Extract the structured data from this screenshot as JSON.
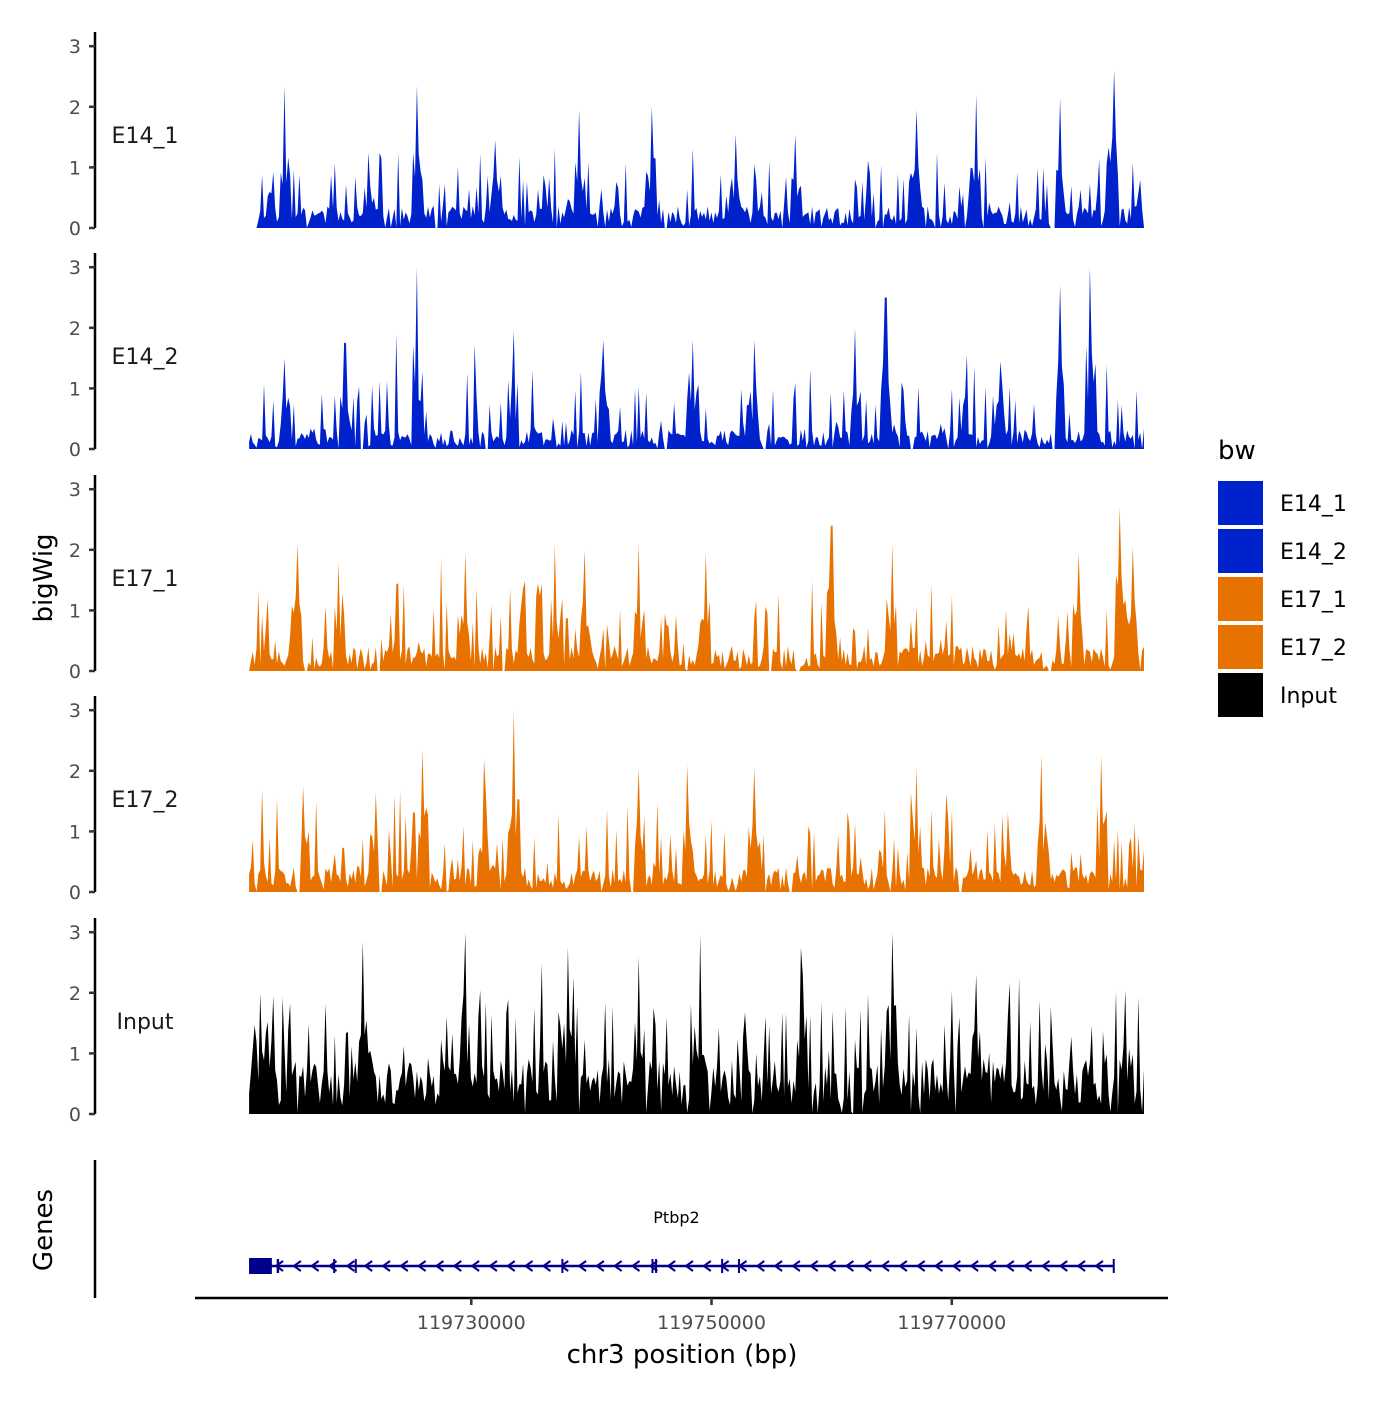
{
  "chart_data": {
    "type": "area",
    "title": "",
    "ylabel": "bigWig",
    "xlabel": "chr3 position (bp)",
    "gene_panel_label": "Genes",
    "x_range_bp": [
      119711500,
      119786000
    ],
    "xlim_bp": [
      119707000,
      119788000
    ],
    "x_ticks": [
      119730000,
      119750000,
      119770000
    ],
    "x_tick_labels": [
      "119730000",
      "119750000",
      "119770000"
    ],
    "ylim": [
      0,
      3.1
    ],
    "y_ticks": [
      0,
      1,
      2,
      3
    ],
    "y_tick_labels": [
      "0",
      "1",
      "2",
      "3"
    ],
    "legend": {
      "title": "bw",
      "position": "right",
      "entries": [
        {
          "name": "E14_1",
          "color": "#0022CC"
        },
        {
          "name": "E14_2",
          "color": "#0022CC"
        },
        {
          "name": "E17_1",
          "color": "#E87200"
        },
        {
          "name": "E17_2",
          "color": "#E87200"
        },
        {
          "name": "Input",
          "color": "#000000"
        }
      ]
    },
    "series": [
      {
        "name": "E14_1",
        "color": "#0022CC",
        "seed": 11,
        "base": 0.28,
        "spike_max": 1.0,
        "peaks": [
          {
            "bp": 119714500,
            "value": 2.35
          },
          {
            "bp": 119721500,
            "value": 1.25
          },
          {
            "bp": 119725500,
            "value": 2.35
          },
          {
            "bp": 119732000,
            "value": 1.45
          },
          {
            "bp": 119739000,
            "value": 1.95
          },
          {
            "bp": 119745000,
            "value": 2.0
          },
          {
            "bp": 119752000,
            "value": 1.55
          },
          {
            "bp": 119757000,
            "value": 1.55
          },
          {
            "bp": 119767000,
            "value": 1.95
          },
          {
            "bp": 119772000,
            "value": 2.2
          },
          {
            "bp": 119779000,
            "value": 2.15
          },
          {
            "bp": 119783500,
            "value": 2.6
          }
        ],
        "gaps": [
          [
            119711500,
            119712200
          ],
          [
            119727000,
            119727300
          ],
          [
            119746000,
            119746300
          ],
          [
            119763500,
            119763800
          ],
          [
            119772500,
            119772800
          ],
          [
            119778200,
            119778700
          ]
        ]
      },
      {
        "name": "E14_2",
        "color": "#0022CC",
        "seed": 23,
        "base": 0.25,
        "spike_max": 1.1,
        "peaks": [
          {
            "bp": 119714500,
            "value": 1.5
          },
          {
            "bp": 119719500,
            "value": 1.75
          },
          {
            "bp": 119725500,
            "value": 3.0
          },
          {
            "bp": 119733500,
            "value": 1.95
          },
          {
            "bp": 119741000,
            "value": 1.8
          },
          {
            "bp": 119748500,
            "value": 1.8
          },
          {
            "bp": 119753500,
            "value": 1.8
          },
          {
            "bp": 119762000,
            "value": 2.0
          },
          {
            "bp": 119764500,
            "value": 2.5
          },
          {
            "bp": 119774000,
            "value": 1.45
          },
          {
            "bp": 119779000,
            "value": 2.7
          },
          {
            "bp": 119781500,
            "value": 3.0
          }
        ],
        "gaps": [
          [
            119720800,
            119721000
          ],
          [
            119731200,
            119731500
          ],
          [
            119746000,
            119746300
          ],
          [
            119754300,
            119754600
          ],
          [
            119766500,
            119766800
          ],
          [
            119778300,
            119778700
          ]
        ]
      },
      {
        "name": "E17_1",
        "color": "#E87200",
        "seed": 37,
        "base": 0.32,
        "spike_max": 1.25,
        "peaks": [
          {
            "bp": 119715500,
            "value": 2.1
          },
          {
            "bp": 119719000,
            "value": 1.8
          },
          {
            "bp": 119729500,
            "value": 1.95
          },
          {
            "bp": 119737000,
            "value": 2.1
          },
          {
            "bp": 119739500,
            "value": 2.0
          },
          {
            "bp": 119744000,
            "value": 2.1
          },
          {
            "bp": 119749500,
            "value": 1.95
          },
          {
            "bp": 119760000,
            "value": 2.4
          },
          {
            "bp": 119765000,
            "value": 2.1
          },
          {
            "bp": 119780500,
            "value": 1.95
          },
          {
            "bp": 119784000,
            "value": 2.7
          },
          {
            "bp": 119785000,
            "value": 2.05
          }
        ],
        "gaps": [
          [
            119722200,
            119722500
          ],
          [
            119732500,
            119732800
          ],
          [
            119754700,
            119755000
          ],
          [
            119757000,
            119757300
          ],
          [
            119778000,
            119778300
          ]
        ]
      },
      {
        "name": "E17_2",
        "color": "#E87200",
        "seed": 53,
        "base": 0.32,
        "spike_max": 1.3,
        "peaks": [
          {
            "bp": 119716000,
            "value": 1.75
          },
          {
            "bp": 119722000,
            "value": 1.65
          },
          {
            "bp": 119726000,
            "value": 2.35
          },
          {
            "bp": 119731000,
            "value": 2.2
          },
          {
            "bp": 119733500,
            "value": 3.0
          },
          {
            "bp": 119744000,
            "value": 2.05
          },
          {
            "bp": 119748000,
            "value": 2.1
          },
          {
            "bp": 119753500,
            "value": 2.05
          },
          {
            "bp": 119767000,
            "value": 2.05
          },
          {
            "bp": 119777500,
            "value": 2.25
          },
          {
            "bp": 119782500,
            "value": 2.25
          }
        ],
        "gaps": [
          [
            119715500,
            119715800
          ],
          [
            119722300,
            119722600
          ],
          [
            119743200,
            119743500
          ],
          [
            119756500,
            119756800
          ],
          [
            119770500,
            119770800
          ]
        ]
      },
      {
        "name": "Input",
        "color": "#000000",
        "seed": 71,
        "base": 0.7,
        "spike_max": 1.6,
        "peaks": [
          {
            "bp": 119712500,
            "value": 2.0
          },
          {
            "bp": 119721000,
            "value": 2.85
          },
          {
            "bp": 119729500,
            "value": 3.0
          },
          {
            "bp": 119738000,
            "value": 2.75
          },
          {
            "bp": 119744000,
            "value": 2.6
          },
          {
            "bp": 119749000,
            "value": 2.95
          },
          {
            "bp": 119757500,
            "value": 2.75
          },
          {
            "bp": 119765000,
            "value": 3.0
          },
          {
            "bp": 119772000,
            "value": 2.3
          },
          {
            "bp": 119784500,
            "value": 2.05
          }
        ],
        "gaps": []
      }
    ],
    "gene": {
      "name": "Ptbp2",
      "strand": "-",
      "start_bp": 119711500,
      "end_bp": 119783500,
      "color": "#00008B",
      "exons": [
        {
          "start": 119711500,
          "end": 119713400
        },
        {
          "start": 119713800,
          "end": 119714000
        },
        {
          "start": 119718500,
          "end": 119718600
        },
        {
          "start": 119720300,
          "end": 119720400
        },
        {
          "start": 119737500,
          "end": 119737600
        },
        {
          "start": 119745000,
          "end": 119745100
        },
        {
          "start": 119745300,
          "end": 119745400
        },
        {
          "start": 119750800,
          "end": 119750900
        },
        {
          "start": 119752200,
          "end": 119752300
        },
        {
          "start": 119783400,
          "end": 119783500
        }
      ],
      "arrow_count": 47
    }
  }
}
